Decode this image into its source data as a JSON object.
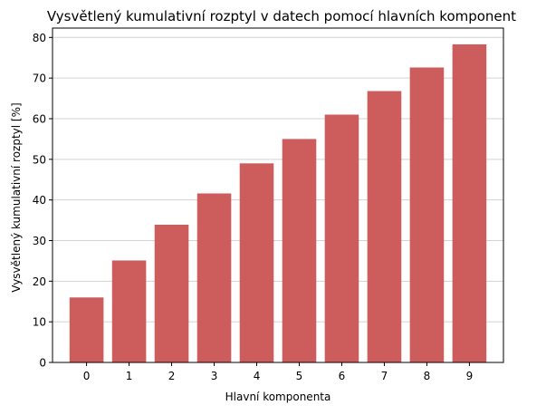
{
  "chart_data": {
    "type": "bar",
    "title": "Vysvětlený kumulativní rozptyl v datech pomocí hlavních komponent",
    "xlabel": "Hlavní komponenta",
    "ylabel": "Vysvětlený kumulativní rozptyl [%]",
    "categories": [
      "0",
      "1",
      "2",
      "3",
      "4",
      "5",
      "6",
      "7",
      "8",
      "9"
    ],
    "values": [
      16.0,
      25.1,
      33.9,
      41.6,
      49.0,
      55.0,
      61.0,
      66.8,
      72.6,
      78.3
    ],
    "ylim": [
      0,
      82.3
    ],
    "yticks": [
      0,
      10,
      20,
      30,
      40,
      50,
      60,
      70,
      80
    ],
    "grid": "horizontal",
    "bar_color": "#cd5c5c",
    "grid_color": "#d3d3d3"
  }
}
